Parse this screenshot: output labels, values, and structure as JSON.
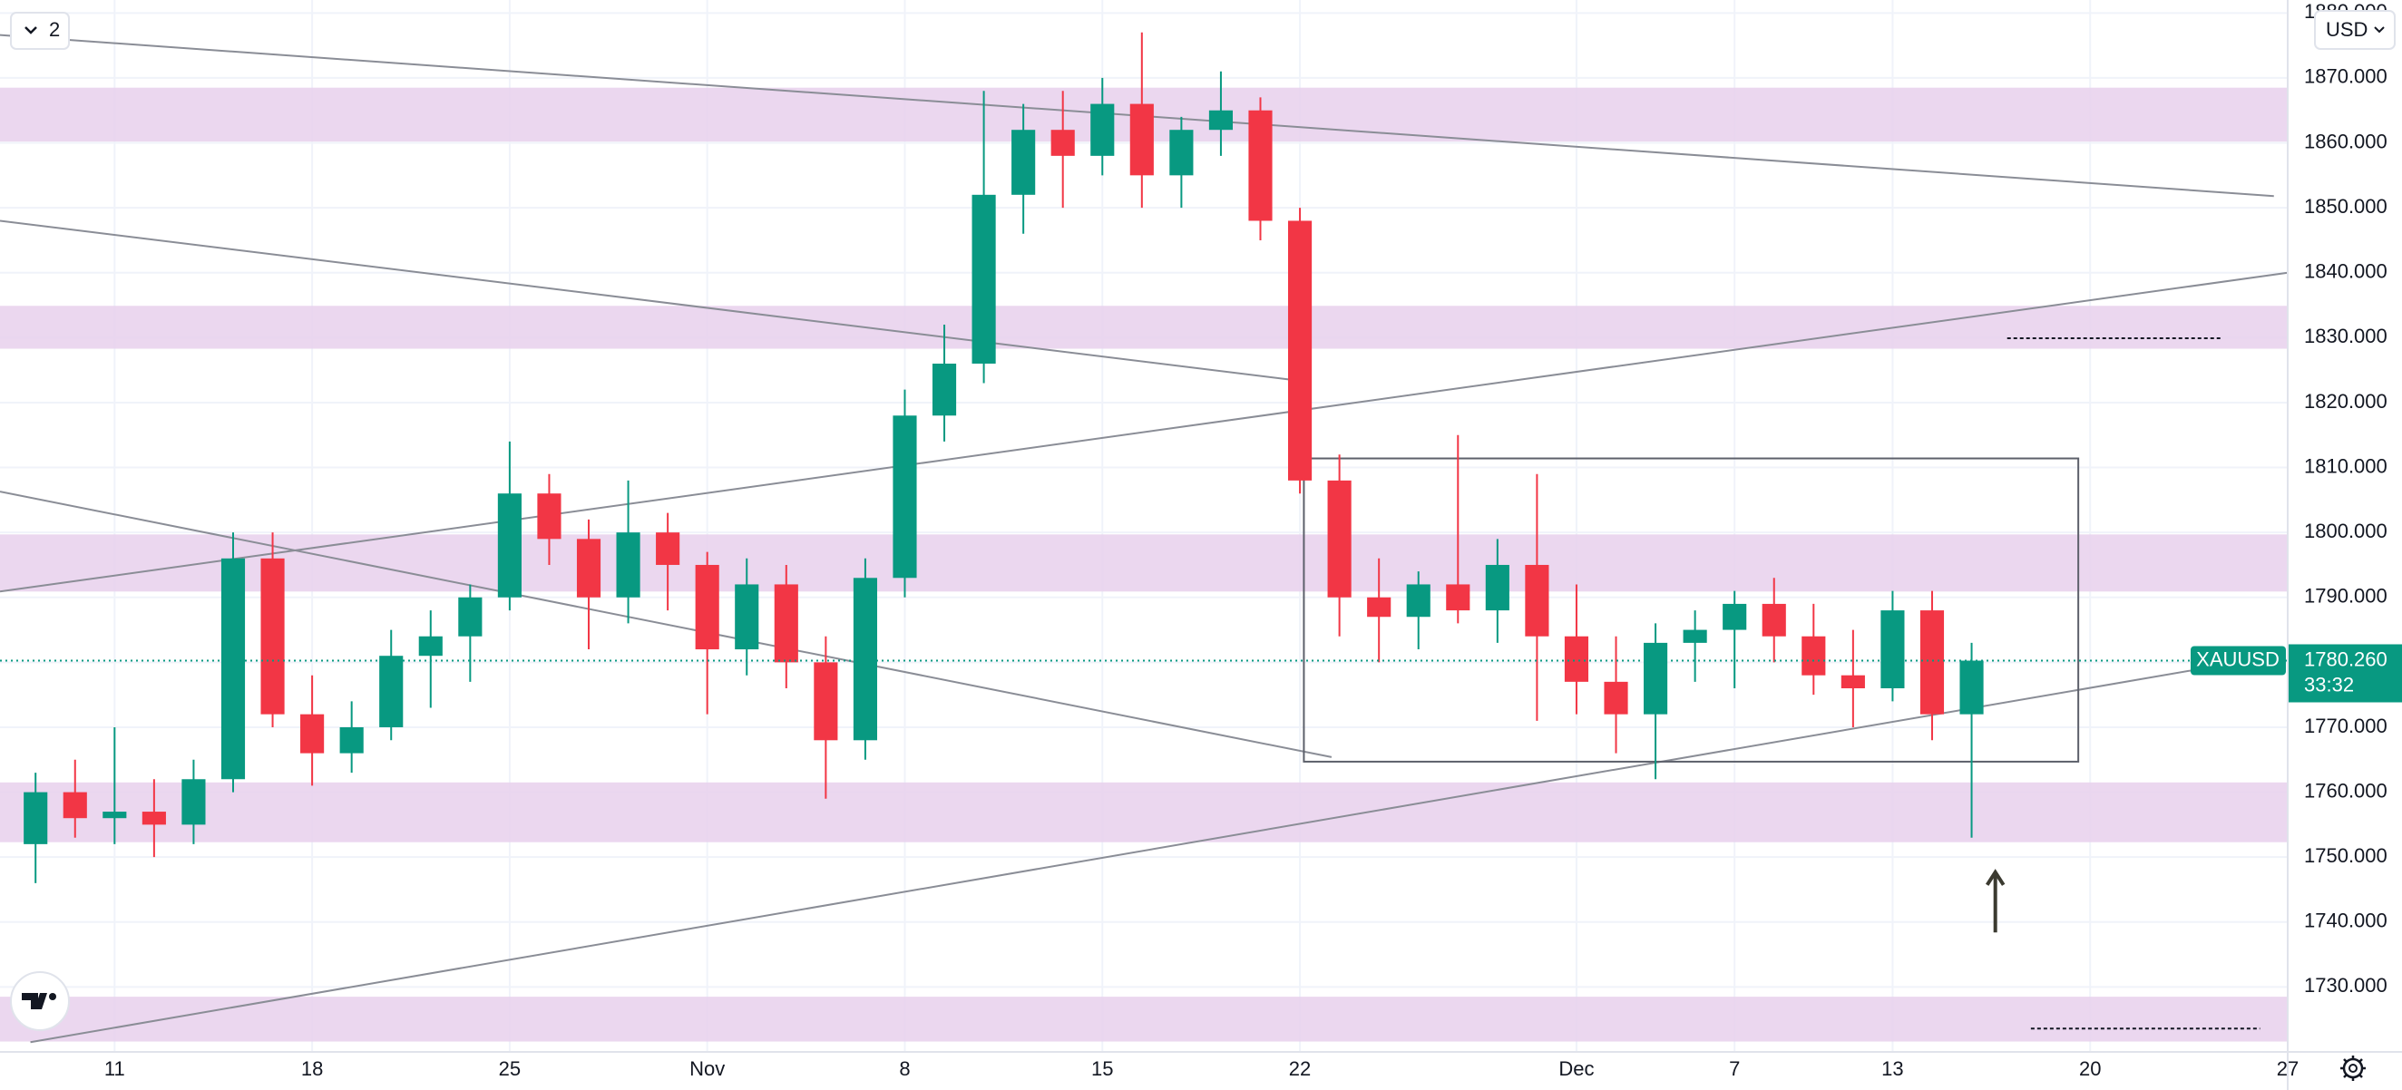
{
  "chart_data": {
    "type": "candlestick",
    "symbol": "XAUUSD",
    "toolbar": {
      "layouts": "2",
      "currency": "USD"
    },
    "up_color": "#089981",
    "down_color": "#f23645",
    "x": [
      -2,
      -1,
      0,
      1,
      2,
      3,
      4,
      5,
      6,
      7,
      8,
      9,
      10,
      11,
      12,
      13,
      14,
      15,
      16,
      17,
      18,
      19,
      20,
      21,
      22,
      23,
      24,
      25,
      26,
      27,
      28,
      29,
      30,
      31,
      32,
      33,
      34,
      35,
      36,
      37,
      38,
      39,
      40,
      41,
      42,
      43,
      44,
      45,
      46,
      47
    ],
    "open": [
      1752,
      1760,
      1756,
      1757,
      1755,
      1762,
      1796,
      1772,
      1766,
      1770,
      1781,
      1784,
      1790,
      1806,
      1799,
      1790,
      1800,
      1795,
      1782,
      1792,
      1780,
      1768,
      1793,
      1818,
      1826,
      1852,
      1862,
      1858,
      1866,
      1855,
      1862,
      1865,
      1848,
      1808,
      1790,
      1787,
      1792,
      1788,
      1795,
      1784,
      1777,
      1772,
      1783,
      1785,
      1789,
      1784,
      1778,
      1776,
      1788,
      1772
    ],
    "high": [
      1763,
      1765,
      1770,
      1762,
      1765,
      1800,
      1800,
      1778,
      1774,
      1785,
      1788,
      1792,
      1814,
      1809,
      1802,
      1808,
      1803,
      1797,
      1796,
      1795,
      1784,
      1796,
      1822,
      1832,
      1868,
      1866,
      1868,
      1870,
      1877,
      1864,
      1871,
      1867,
      1850,
      1812,
      1796,
      1794,
      1815,
      1799,
      1809,
      1792,
      1784,
      1786,
      1788,
      1791,
      1793,
      1789,
      1785,
      1791,
      1791,
      1783
    ],
    "low": [
      1746,
      1753,
      1752,
      1750,
      1752,
      1760,
      1770,
      1761,
      1763,
      1768,
      1773,
      1777,
      1788,
      1795,
      1782,
      1786,
      1788,
      1772,
      1778,
      1776,
      1759,
      1765,
      1790,
      1814,
      1823,
      1846,
      1850,
      1855,
      1850,
      1850,
      1858,
      1845,
      1806,
      1784,
      1780,
      1782,
      1786,
      1783,
      1771,
      1772,
      1766,
      1762,
      1777,
      1776,
      1780,
      1775,
      1770,
      1774,
      1768,
      1753
    ],
    "close": [
      1760,
      1756,
      1757,
      1755,
      1762,
      1796,
      1772,
      1766,
      1770,
      1781,
      1784,
      1790,
      1806,
      1799,
      1790,
      1800,
      1795,
      1782,
      1792,
      1780,
      1768,
      1793,
      1818,
      1826,
      1852,
      1862,
      1858,
      1866,
      1855,
      1862,
      1865,
      1848,
      1808,
      1790,
      1787,
      1792,
      1788,
      1795,
      1784,
      1777,
      1772,
      1783,
      1785,
      1789,
      1784,
      1778,
      1776,
      1788,
      1772,
      1780.26
    ],
    "xlim": [
      -2.9,
      55
    ],
    "ylim": [
      1720,
      1882
    ],
    "xticks": [
      {
        "value": 0,
        "label": "11"
      },
      {
        "value": 5,
        "label": "18"
      },
      {
        "value": 10,
        "label": "25"
      },
      {
        "value": 15,
        "label": "Nov"
      },
      {
        "value": 20,
        "label": "8"
      },
      {
        "value": 25,
        "label": "15"
      },
      {
        "value": 30,
        "label": "22"
      },
      {
        "value": 37,
        "label": "Dec"
      },
      {
        "value": 41,
        "label": "7"
      },
      {
        "value": 45,
        "label": "13"
      },
      {
        "value": 50,
        "label": "20"
      },
      {
        "value": 55,
        "label": "27"
      }
    ],
    "yticks": [
      {
        "value": 1730,
        "label": "1730.000"
      },
      {
        "value": 1740,
        "label": "1740.000"
      },
      {
        "value": 1750,
        "label": "1750.000"
      },
      {
        "value": 1760,
        "label": "1760.000"
      },
      {
        "value": 1770,
        "label": "1770.000"
      },
      {
        "value": 1780,
        "label": "1780.000"
      },
      {
        "value": 1790,
        "label": "1790.000"
      },
      {
        "value": 1800,
        "label": "1800.000"
      },
      {
        "value": 1810,
        "label": "1810.000"
      },
      {
        "value": 1820,
        "label": "1820.000"
      },
      {
        "value": 1830,
        "label": "1830.000"
      },
      {
        "value": 1840,
        "label": "1840.000"
      },
      {
        "value": 1850,
        "label": "1850.000"
      },
      {
        "value": 1860,
        "label": "1860.000"
      },
      {
        "value": 1870,
        "label": "1870.000"
      },
      {
        "value": 1880,
        "label": "1880.000"
      }
    ],
    "grid": true,
    "zones": [
      {
        "from": 1860.2,
        "to": 1868.5,
        "color": "#e7d0ec"
      },
      {
        "from": 1828.3,
        "to": 1834.9,
        "color": "#e7d0ec"
      },
      {
        "from": 1790.9,
        "to": 1799.7,
        "color": "#e7d0ec"
      },
      {
        "from": 1752.3,
        "to": 1761.5,
        "color": "#e7d0ec"
      },
      {
        "from": 1721.6,
        "to": 1728.5,
        "color": "#e7d0ec"
      }
    ],
    "trendlines": [
      {
        "x": [
          -2.9,
          54.65
        ],
        "y": [
          1876.6,
          1851.8
        ]
      },
      {
        "x": [
          -2.9,
          29.8
        ],
        "y": [
          1848.0,
          1823.5
        ]
      },
      {
        "x": [
          -2.9,
          30.8
        ],
        "y": [
          1806.3,
          1765.4
        ]
      },
      {
        "x": [
          -2.9,
          55
        ],
        "y": [
          1790.9,
          1840.0
        ]
      },
      {
        "x": [
          -2.13,
          52.9
        ],
        "y": [
          1721.5,
          1779.1
        ]
      }
    ],
    "rectangle": {
      "x": [
        30.1,
        49.7
      ],
      "y": [
        1764.7,
        1811.4
      ]
    },
    "dashed_levels": [
      {
        "x": [
          47.9,
          53.3
        ],
        "y": 1829.9
      },
      {
        "x": [
          48.5,
          54.3
        ],
        "y": 1723.6
      }
    ],
    "arrow": {
      "x": 47.6,
      "y": [
        1738.4,
        1747.4
      ]
    },
    "last_price": {
      "value": 1780.26,
      "label": "1780.260",
      "countdown": "33:32"
    }
  }
}
